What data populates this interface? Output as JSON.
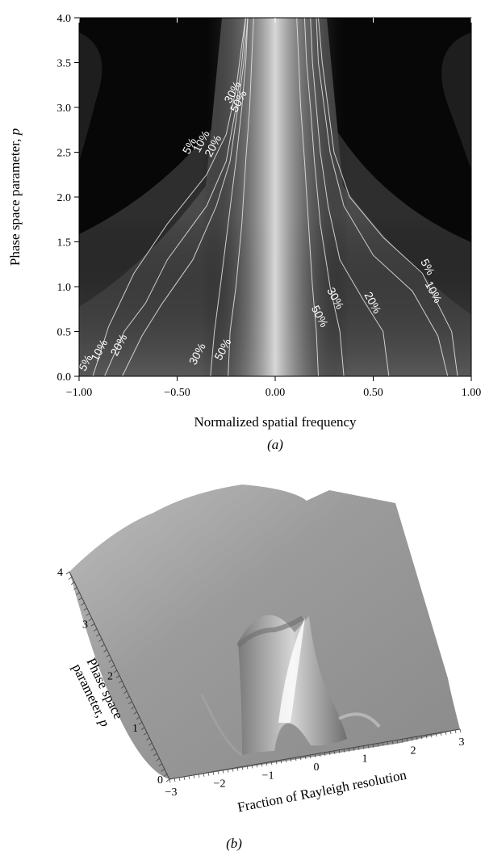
{
  "chart_data": [
    {
      "panel": "(a)",
      "type": "heatmap",
      "caption": "(a)",
      "xlabel": "Normalized spatial frequency",
      "ylabel": "Phase space parameter, p",
      "xlim": [
        -1.0,
        1.0
      ],
      "ylim": [
        0.0,
        4.0
      ],
      "x_ticks": [
        "-1.00",
        "-0.50",
        "0.00",
        "0.50",
        "1.00"
      ],
      "x_tick_values": [
        -1.0,
        -0.5,
        0.0,
        0.5,
        1.0
      ],
      "y_ticks": [
        "0.0",
        "0.5",
        "1.0",
        "1.5",
        "2.0",
        "2.5",
        "3.0",
        "3.5",
        "4.0"
      ],
      "y_tick_values": [
        0.0,
        0.5,
        1.0,
        1.5,
        2.0,
        2.5,
        3.0,
        3.5,
        4.0
      ],
      "colormap": "grayscale",
      "contours": [
        {
          "level": "5%",
          "left": [
            [
              -0.93,
              0.0
            ],
            [
              -0.85,
              0.55
            ],
            [
              -0.72,
              1.15
            ],
            [
              -0.55,
              1.7
            ],
            [
              -0.35,
              2.25
            ],
            [
              -0.25,
              2.7
            ],
            [
              -0.2,
              3.2
            ],
            [
              -0.17,
              3.7
            ],
            [
              -0.15,
              4.0
            ]
          ],
          "right": [
            [
              0.93,
              0.0
            ],
            [
              0.9,
              0.5
            ],
            [
              0.75,
              1.15
            ],
            [
              0.55,
              1.55
            ],
            [
              0.38,
              2.0
            ],
            [
              0.3,
              2.5
            ],
            [
              0.27,
              3.0
            ],
            [
              0.24,
              3.5
            ],
            [
              0.22,
              4.0
            ]
          ]
        },
        {
          "level": "10%",
          "left": [
            [
              -0.87,
              0.0
            ],
            [
              -0.77,
              0.5
            ],
            [
              -0.66,
              0.82
            ],
            [
              -0.55,
              1.3
            ],
            [
              -0.35,
              1.9
            ],
            [
              -0.25,
              2.4
            ],
            [
              -0.2,
              3.0
            ],
            [
              -0.17,
              3.5
            ],
            [
              -0.15,
              4.0
            ]
          ],
          "right": [
            [
              0.88,
              0.0
            ],
            [
              0.83,
              0.45
            ],
            [
              0.7,
              0.95
            ],
            [
              0.5,
              1.35
            ],
            [
              0.35,
              1.9
            ],
            [
              0.28,
              2.5
            ],
            [
              0.25,
              3.0
            ],
            [
              0.22,
              3.5
            ],
            [
              0.21,
              4.0
            ]
          ]
        },
        {
          "level": "20%",
          "left": [
            [
              -0.78,
              0.0
            ],
            [
              -0.68,
              0.45
            ],
            [
              -0.58,
              0.8
            ],
            [
              -0.42,
              1.3
            ],
            [
              -0.3,
              1.9
            ],
            [
              -0.23,
              2.4
            ],
            [
              -0.19,
              3.0
            ],
            [
              -0.16,
              3.5
            ],
            [
              -0.14,
              4.0
            ]
          ],
          "right": [
            [
              0.58,
              0.0
            ],
            [
              0.55,
              0.5
            ],
            [
              0.45,
              0.85
            ],
            [
              0.33,
              1.3
            ],
            [
              0.27,
              1.9
            ],
            [
              0.23,
              2.5
            ],
            [
              0.21,
              3.0
            ],
            [
              0.19,
              3.5
            ],
            [
              0.18,
              4.0
            ]
          ]
        },
        {
          "level": "30%",
          "left": [
            [
              -0.33,
              0.0
            ],
            [
              -0.31,
              0.5
            ],
            [
              -0.28,
              1.0
            ],
            [
              -0.24,
              1.7
            ],
            [
              -0.2,
              2.4
            ],
            [
              -0.17,
              3.0
            ],
            [
              -0.15,
              3.5
            ],
            [
              -0.14,
              4.0
            ]
          ],
          "right": [
            [
              0.35,
              0.0
            ],
            [
              0.33,
              0.5
            ],
            [
              0.28,
              1.0
            ],
            [
              0.23,
              1.7
            ],
            [
              0.2,
              2.4
            ],
            [
              0.18,
              3.0
            ],
            [
              0.16,
              3.5
            ],
            [
              0.15,
              4.0
            ]
          ]
        },
        {
          "level": "50%",
          "left": [
            [
              -0.24,
              0.0
            ],
            [
              -0.23,
              0.5
            ],
            [
              -0.2,
              1.0
            ],
            [
              -0.17,
              1.7
            ],
            [
              -0.15,
              2.4
            ],
            [
              -0.13,
              3.0
            ],
            [
              -0.12,
              3.5
            ],
            [
              -0.11,
              4.0
            ]
          ],
          "right": [
            [
              0.22,
              0.0
            ],
            [
              0.21,
              0.5
            ],
            [
              0.19,
              1.0
            ],
            [
              0.17,
              1.7
            ],
            [
              0.15,
              2.4
            ],
            [
              0.13,
              3.0
            ],
            [
              0.12,
              3.5
            ],
            [
              0.11,
              4.0
            ]
          ]
        }
      ],
      "contour_labels": [
        {
          "text": "5%",
          "x": -0.95,
          "y": 0.13
        },
        {
          "text": "10%",
          "x": -0.88,
          "y": 0.27
        },
        {
          "text": "20%",
          "x": -0.78,
          "y": 0.33
        },
        {
          "text": "30%",
          "x": -0.38,
          "y": 0.23
        },
        {
          "text": "50%",
          "x": -0.25,
          "y": 0.28
        },
        {
          "text": "5%",
          "x": -0.42,
          "y": 2.55
        },
        {
          "text": "10%",
          "x": -0.36,
          "y": 2.6
        },
        {
          "text": "20%",
          "x": -0.3,
          "y": 2.55
        },
        {
          "text": "30%",
          "x": -0.2,
          "y": 3.15
        },
        {
          "text": "50%",
          "x": -0.17,
          "y": 3.05
        },
        {
          "text": "5%",
          "x": 0.76,
          "y": 1.2
        },
        {
          "text": "10%",
          "x": 0.79,
          "y": 0.92
        },
        {
          "text": "20%",
          "x": 0.48,
          "y": 0.8
        },
        {
          "text": "30%",
          "x": 0.29,
          "y": 0.85
        },
        {
          "text": "50%",
          "x": 0.21,
          "y": 0.65
        }
      ]
    },
    {
      "panel": "(b)",
      "type": "surface",
      "caption": "(b)",
      "xlabel": "Fraction of Rayleigh resolution",
      "ylabel": "Phase space parameter, p",
      "x_ticks": [
        "-3",
        "-2",
        "-1",
        "0",
        "1",
        "2",
        "3"
      ],
      "x_tick_values": [
        -3,
        -2,
        -1,
        0,
        1,
        2,
        3
      ],
      "y_ticks": [
        "0",
        "1",
        "2",
        "3",
        "4"
      ],
      "y_tick_values": [
        0,
        1,
        2,
        3,
        4
      ],
      "colormap": "grayscale"
    }
  ]
}
